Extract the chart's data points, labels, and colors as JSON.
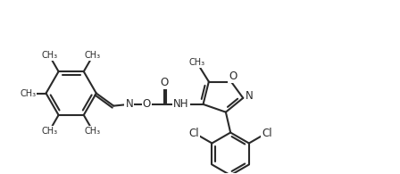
{
  "bg_color": "#ffffff",
  "line_color": "#2a2a2a",
  "line_width": 1.5,
  "fig_width": 4.48,
  "fig_height": 1.95,
  "dpi": 100,
  "font_size": 8.5,
  "xlim": [
    0,
    11.5
  ],
  "ylim": [
    0,
    5.5
  ]
}
